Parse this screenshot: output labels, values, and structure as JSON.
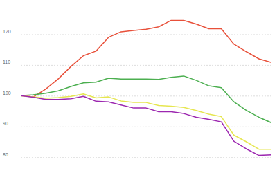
{
  "chart_data": {
    "type": "line",
    "categories": [
      null,
      null,
      null,
      null,
      null,
      null,
      null,
      null,
      null,
      null,
      null,
      null,
      null,
      null,
      null,
      null,
      null,
      null,
      null,
      null,
      null
    ],
    "series": [
      {
        "color": "#e8503a",
        "values": [
          100,
          99.6,
          102.2,
          105.5,
          109.5,
          113,
          114.5,
          119,
          120.8,
          121.2,
          121.6,
          122.4,
          124.5,
          124.5,
          123.3,
          121.8,
          121.8,
          116.8,
          114.3,
          112,
          110.8
        ]
      },
      {
        "color": "#4caf50",
        "values": [
          100,
          100.3,
          100.8,
          101.6,
          103,
          104.2,
          104.4,
          105.7,
          105.4,
          105.4,
          105.4,
          105.3,
          106,
          106.4,
          105,
          103.2,
          102.6,
          98,
          95.2,
          93,
          91.2
        ]
      },
      {
        "color": "#e6e650",
        "values": [
          100,
          99.6,
          99.2,
          99.4,
          99.8,
          100.6,
          99.3,
          99.6,
          98.3,
          97.8,
          97.8,
          96.8,
          96.6,
          96.2,
          95.2,
          94,
          93.2,
          87.2,
          85,
          82.6,
          82.6
        ]
      },
      {
        "color": "#9c27b0",
        "values": [
          100,
          99.5,
          98.8,
          98.8,
          99,
          99.8,
          98.2,
          98,
          97,
          96,
          96,
          94.8,
          94.8,
          94.2,
          93,
          92.3,
          91.5,
          85.2,
          82.7,
          80.6,
          80.8
        ]
      }
    ],
    "ylim": [
      76,
      130
    ],
    "yticks": [
      80,
      90,
      100,
      110,
      120
    ],
    "grid": true,
    "tick_labels": "y"
  }
}
